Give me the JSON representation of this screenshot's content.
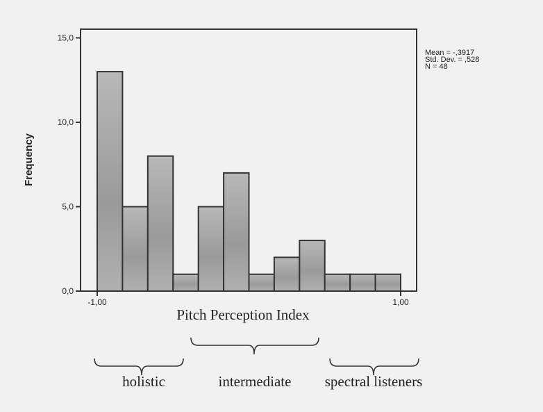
{
  "chart_data": {
    "type": "bar",
    "subtype": "histogram",
    "xlabel": "Pitch Perception Index",
    "ylabel": "Frequency",
    "xlim": [
      -1.0,
      1.0
    ],
    "ylim": [
      0,
      15
    ],
    "x_tick_values": [
      -1.0,
      1.0
    ],
    "x_tick_labels": [
      "-1,00",
      "1,00"
    ],
    "y_tick_values": [
      0,
      5,
      10,
      15
    ],
    "y_tick_labels": [
      "0,0",
      "5,0",
      "10,0",
      "15,0"
    ],
    "bin_count": 12,
    "values": [
      13,
      5,
      8,
      1,
      5,
      7,
      1,
      2,
      3,
      1,
      1,
      1
    ],
    "stats": [
      "Mean = -,3917",
      "Std. Dev. = ,528",
      "N = 48"
    ],
    "legend_position": "top-right",
    "groups": [
      {
        "label": "holistic",
        "from_bin": 0,
        "to_bin": 3
      },
      {
        "label": "intermediate",
        "from_bin": 4,
        "to_bin": 8
      },
      {
        "label": "spectral listeners",
        "from_bin": 9,
        "to_bin": 11
      }
    ],
    "colors": {
      "bar": "#a8a8a8",
      "outline": "#333333",
      "background": "#f1f1f1"
    }
  }
}
